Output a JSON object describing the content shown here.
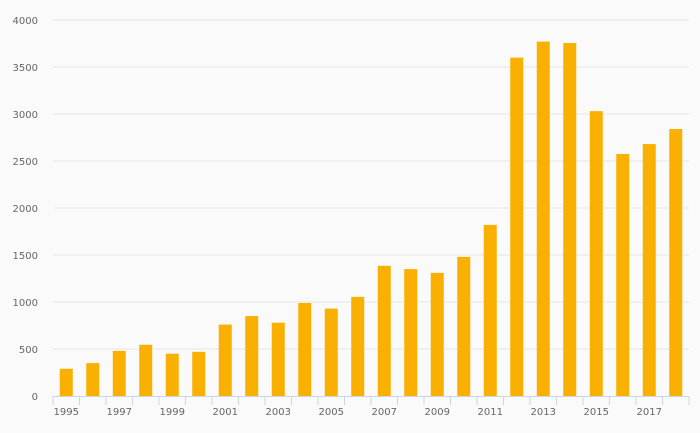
{
  "chart_data": {
    "type": "bar",
    "title": "",
    "xlabel": "",
    "ylabel": "",
    "categories": [
      "1995",
      "1996",
      "1997",
      "1998",
      "1999",
      "2000",
      "2001",
      "2002",
      "2003",
      "2004",
      "2005",
      "2006",
      "2007",
      "2008",
      "2009",
      "2010",
      "2011",
      "2012",
      "2013",
      "2014",
      "2015",
      "2016",
      "2017",
      "2018"
    ],
    "x_tick_labels": [
      "1995",
      "1997",
      "1999",
      "2001",
      "2003",
      "2005",
      "2007",
      "2009",
      "2011",
      "2013",
      "2015",
      "2017"
    ],
    "values": [
      290,
      350,
      480,
      545,
      450,
      470,
      760,
      850,
      780,
      990,
      930,
      1055,
      1385,
      1350,
      1310,
      1480,
      1820,
      3600,
      3770,
      3755,
      3030,
      2575,
      2680,
      2840
    ],
    "ylim": [
      0,
      4000
    ],
    "y_ticks": [
      0,
      500,
      1000,
      1500,
      2000,
      2500,
      3000,
      3500,
      4000
    ],
    "grid": true,
    "legend": "none",
    "colors": {
      "bar": "#f9b000",
      "grid": "#e6e6e6",
      "axis": "#c9d6e8"
    }
  }
}
